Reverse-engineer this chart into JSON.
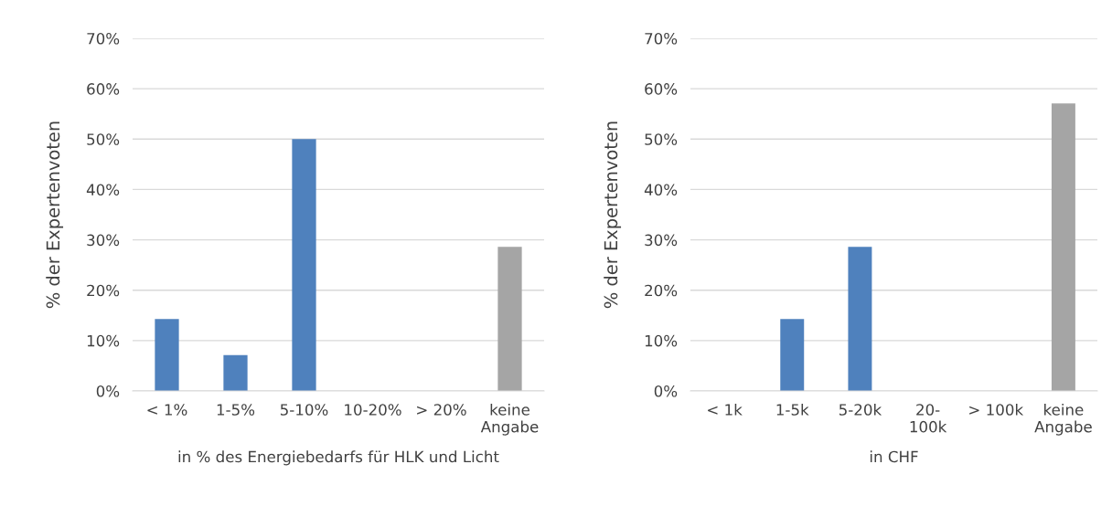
{
  "chart_data": [
    {
      "type": "bar",
      "xlabel": "in % des Energiebedarfs für HLK und Licht",
      "ylabel": "% der Expertenvoten",
      "categories": [
        "< 1%",
        "1-5%",
        "5-10%",
        "10-20%",
        "> 20%",
        "keine\nAngabe"
      ],
      "values": [
        14.3,
        7.1,
        50,
        0,
        0,
        28.6
      ],
      "colors": [
        "#4f81bd",
        "#4f81bd",
        "#4f81bd",
        "#4f81bd",
        "#4f81bd",
        "#a5a5a5"
      ],
      "ylim": [
        0,
        70
      ],
      "yticks": [
        {
          "value": 0,
          "label": "0%"
        },
        {
          "value": 10,
          "label": "10%"
        },
        {
          "value": 20,
          "label": "20%"
        },
        {
          "value": 30,
          "label": "30%"
        },
        {
          "value": 40,
          "label": "40%"
        },
        {
          "value": 50,
          "label": "50%"
        },
        {
          "value": 60,
          "label": "60%"
        },
        {
          "value": 70,
          "label": "70%"
        }
      ],
      "grid": "y",
      "legend": false
    },
    {
      "type": "bar",
      "xlabel": "in CHF",
      "ylabel": "% der Expertenvoten",
      "categories": [
        "< 1k",
        "1-5k",
        "5-20k",
        "20-\n100k",
        "> 100k",
        "keine\nAngabe"
      ],
      "values": [
        0,
        14.3,
        28.6,
        0,
        0,
        57.1
      ],
      "colors": [
        "#4f81bd",
        "#4f81bd",
        "#4f81bd",
        "#4f81bd",
        "#4f81bd",
        "#a5a5a5"
      ],
      "ylim": [
        0,
        70
      ],
      "yticks": [
        {
          "value": 0,
          "label": "0%"
        },
        {
          "value": 10,
          "label": "10%"
        },
        {
          "value": 20,
          "label": "20%"
        },
        {
          "value": 30,
          "label": "30%"
        },
        {
          "value": 40,
          "label": "40%"
        },
        {
          "value": 50,
          "label": "50%"
        },
        {
          "value": 60,
          "label": "60%"
        },
        {
          "value": 70,
          "label": "70%"
        }
      ],
      "grid": "y",
      "legend": false
    }
  ]
}
